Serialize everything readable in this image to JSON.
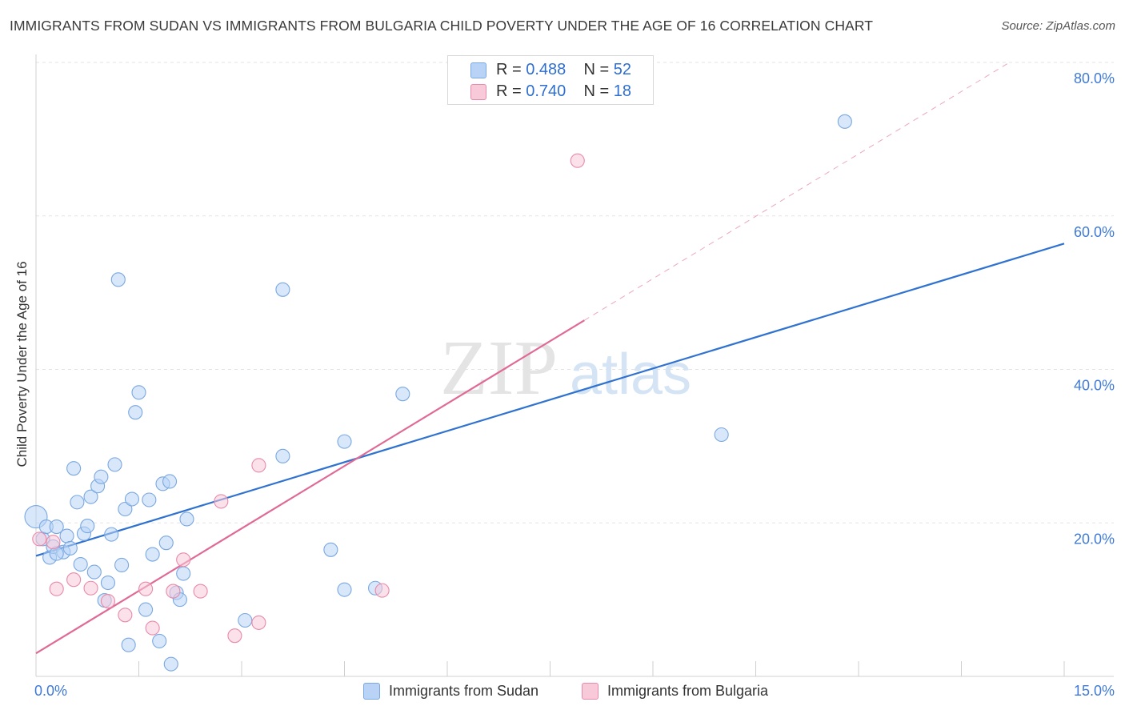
{
  "title": "IMMIGRANTS FROM SUDAN VS IMMIGRANTS FROM BULGARIA CHILD POVERTY UNDER THE AGE OF 16 CORRELATION CHART",
  "source": "Source: ZipAtlas.com",
  "watermark": {
    "zip": "ZIP",
    "atlas": "atlas"
  },
  "legend": {
    "sudan": {
      "r_label": "R =",
      "r_value": "0.488",
      "n_label": "N =",
      "n_value": "52"
    },
    "bulgaria": {
      "r_label": "R =",
      "r_value": "0.740",
      "n_label": "N =",
      "n_value": "18"
    }
  },
  "colors": {
    "sudan_fill": "#b8d3f5",
    "sudan_stroke": "#7aa8e0",
    "sudan_line": "#2f72d0",
    "bulgaria_fill": "#f8c9d8",
    "bulgaria_stroke": "#e88aa8",
    "bulgaria_line": "#e06a95",
    "tick_text": "#3f7ad6",
    "grid": "#e3e3e3"
  },
  "chart_data": {
    "type": "scatter",
    "title": "IMMIGRANTS FROM SUDAN VS IMMIGRANTS FROM BULGARIA CHILD POVERTY UNDER THE AGE OF 16 CORRELATION CHART",
    "xlabel": "",
    "ylabel": "Child Poverty Under the Age of 16",
    "xlim": [
      0,
      15
    ],
    "ylim": [
      0,
      80
    ],
    "x_tick_labels": [
      {
        "value": 0,
        "label": "0.0%"
      },
      {
        "value": 15,
        "label": "15.0%"
      }
    ],
    "y_tick_labels": [
      {
        "value": 20,
        "label": "20.0%"
      },
      {
        "value": 40,
        "label": "40.0%"
      },
      {
        "value": 60,
        "label": "60.0%"
      },
      {
        "value": 80,
        "label": "80.0%"
      }
    ],
    "x_minor_ticks": [
      1.5,
      3,
      4.5,
      6,
      7.5,
      9,
      10.5,
      12,
      13.5,
      15
    ],
    "series": [
      {
        "name": "Immigrants from Sudan",
        "points": [
          [
            0.0,
            20.8
          ],
          [
            0.1,
            17.9
          ],
          [
            0.15,
            19.5
          ],
          [
            0.2,
            15.5
          ],
          [
            0.25,
            16.9
          ],
          [
            0.3,
            19.5
          ],
          [
            0.4,
            16.2
          ],
          [
            0.45,
            18.3
          ],
          [
            0.5,
            16.7
          ],
          [
            0.55,
            27.1
          ],
          [
            0.6,
            22.7
          ],
          [
            0.65,
            14.6
          ],
          [
            0.7,
            18.6
          ],
          [
            0.75,
            19.6
          ],
          [
            0.8,
            23.4
          ],
          [
            0.85,
            13.6
          ],
          [
            0.9,
            24.8
          ],
          [
            0.95,
            26.0
          ],
          [
            1.0,
            9.9
          ],
          [
            1.05,
            12.2
          ],
          [
            1.1,
            18.5
          ],
          [
            1.15,
            27.6
          ],
          [
            1.2,
            51.7
          ],
          [
            1.25,
            14.5
          ],
          [
            1.3,
            21.8
          ],
          [
            1.35,
            4.1
          ],
          [
            1.4,
            23.1
          ],
          [
            1.45,
            34.4
          ],
          [
            1.5,
            37.0
          ],
          [
            1.6,
            8.7
          ],
          [
            1.65,
            23.0
          ],
          [
            1.7,
            15.9
          ],
          [
            1.8,
            4.6
          ],
          [
            1.85,
            25.1
          ],
          [
            1.9,
            17.4
          ],
          [
            1.95,
            25.4
          ],
          [
            1.97,
            1.6
          ],
          [
            2.05,
            10.9
          ],
          [
            2.1,
            10.0
          ],
          [
            2.15,
            13.4
          ],
          [
            2.2,
            20.5
          ],
          [
            3.05,
            7.3
          ],
          [
            3.6,
            28.7
          ],
          [
            3.6,
            50.4
          ],
          [
            4.3,
            16.5
          ],
          [
            4.5,
            30.6
          ],
          [
            4.5,
            11.3
          ],
          [
            4.95,
            11.5
          ],
          [
            5.35,
            36.8
          ],
          [
            10.0,
            31.5
          ],
          [
            11.8,
            72.3
          ],
          [
            0.3,
            16.0
          ]
        ]
      },
      {
        "name": "Immigrants from Bulgaria",
        "points": [
          [
            0.05,
            17.9
          ],
          [
            0.25,
            17.5
          ],
          [
            0.3,
            11.4
          ],
          [
            0.55,
            12.6
          ],
          [
            0.8,
            11.5
          ],
          [
            1.05,
            9.8
          ],
          [
            1.3,
            8.0
          ],
          [
            1.6,
            11.4
          ],
          [
            1.7,
            6.3
          ],
          [
            2.0,
            11.1
          ],
          [
            2.15,
            15.2
          ],
          [
            2.4,
            11.1
          ],
          [
            2.7,
            22.8
          ],
          [
            2.9,
            5.3
          ],
          [
            3.25,
            27.5
          ],
          [
            3.25,
            7.0
          ],
          [
            5.05,
            11.2
          ],
          [
            7.9,
            67.2
          ]
        ]
      }
    ],
    "trend_lines": [
      {
        "series": "Immigrants from Sudan",
        "x": [
          0,
          15
        ],
        "y": [
          15.7,
          56.4
        ],
        "style": "solid"
      },
      {
        "series": "Immigrants from Bulgaria",
        "x": [
          0,
          8.0
        ],
        "y": [
          3.0,
          46.4
        ],
        "style": "solid"
      },
      {
        "series": "Immigrants from Bulgaria",
        "x": [
          8.0,
          14.2
        ],
        "y": [
          46.4,
          80.0
        ],
        "style": "dashed"
      }
    ]
  },
  "bottom_legend": {
    "sudan": "Immigrants from Sudan",
    "bulgaria": "Immigrants from Bulgaria"
  }
}
